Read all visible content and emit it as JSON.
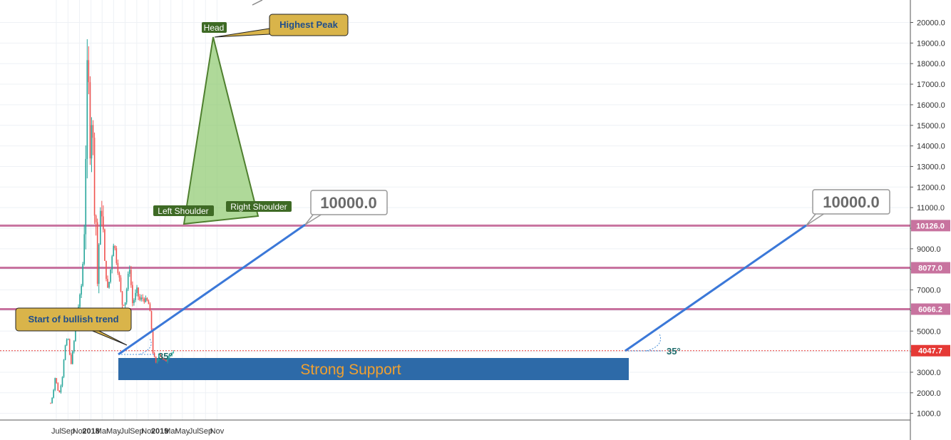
{
  "chart_data": {
    "type": "candlestick",
    "symbol_color_up": "#26a69a",
    "symbol_color_down": "#ef5350",
    "price_axis": {
      "ticks": [
        "1000.0",
        "2000.0",
        "3000.0",
        "4000.0",
        "5000.0",
        "6000.0",
        "7000.0",
        "8000.0",
        "9000.0",
        "10000.0",
        "11000.0",
        "12000.0",
        "13000.0",
        "14000.0",
        "15000.0",
        "16000.0",
        "17000.0",
        "18000.0",
        "19000.0",
        "20000.0"
      ],
      "ylim": [
        0,
        20700
      ]
    },
    "time_axis": {
      "ticks": [
        "Jul",
        "Sep",
        "Nov",
        "2018",
        "Mar",
        "May",
        "Jul",
        "Sep",
        "Nov",
        "2019",
        "Mar",
        "May",
        "Jul",
        "Sep",
        "Nov"
      ]
    },
    "price_series": [
      [
        "2017-06-01",
        1500
      ],
      [
        "2017-06-15",
        2000
      ],
      [
        "2017-06-22",
        2800
      ],
      [
        "2017-07-01",
        2500
      ],
      [
        "2017-07-15",
        1900
      ],
      [
        "2017-08-01",
        2700
      ],
      [
        "2017-08-15",
        4200
      ],
      [
        "2017-09-01",
        4700
      ],
      [
        "2017-09-15",
        3300
      ],
      [
        "2017-10-01",
        4300
      ],
      [
        "2017-10-15",
        5600
      ],
      [
        "2017-11-01",
        6500
      ],
      [
        "2017-11-15",
        7500
      ],
      [
        "2017-11-29",
        10500
      ],
      [
        "2017-12-08",
        16000
      ],
      [
        "2017-12-17",
        19300
      ],
      [
        "2017-12-23",
        13500
      ],
      [
        "2018-01-01",
        14500
      ],
      [
        "2018-01-08",
        16500
      ],
      [
        "2018-01-17",
        11000
      ],
      [
        "2018-01-25",
        11300
      ],
      [
        "2018-02-05",
        7000
      ],
      [
        "2018-02-15",
        10200
      ],
      [
        "2018-03-01",
        11000
      ],
      [
        "2018-03-15",
        8300
      ],
      [
        "2018-04-01",
        6900
      ],
      [
        "2018-04-15",
        8000
      ],
      [
        "2018-05-01",
        9500
      ],
      [
        "2018-05-15",
        8500
      ],
      [
        "2018-06-01",
        7500
      ],
      [
        "2018-06-15",
        6300
      ],
      [
        "2018-07-01",
        6400
      ],
      [
        "2018-07-24",
        8200
      ],
      [
        "2018-08-10",
        6300
      ],
      [
        "2018-09-01",
        7000
      ],
      [
        "2018-09-15",
        6500
      ],
      [
        "2018-10-01",
        6600
      ],
      [
        "2018-10-15",
        6500
      ],
      [
        "2018-11-01",
        6400
      ],
      [
        "2018-11-15",
        5600
      ],
      [
        "2018-11-25",
        4000
      ],
      [
        "2018-12-15",
        3300
      ],
      [
        "2018-12-25",
        4000
      ],
      [
        "2019-01-10",
        3700
      ],
      [
        "2019-02-01",
        3500
      ],
      [
        "2019-02-20",
        3900
      ],
      [
        "2019-03-01",
        3850
      ],
      [
        "2019-03-10",
        4000
      ],
      [
        "2019-03-15",
        3900
      ]
    ],
    "horizontal_levels": [
      {
        "value": 10126.0,
        "label": "10126.0",
        "color": "#c8739f"
      },
      {
        "value": 8077.0,
        "label": "8077.0",
        "color": "#c8739f"
      },
      {
        "value": 6066.2,
        "label": "6066.2",
        "color": "#c8739f"
      },
      {
        "value": 4047.7,
        "label": "4047.7",
        "color": "#e53935",
        "style": "dotted"
      }
    ],
    "trend_lines": [
      {
        "from": [
          "2017-09-03",
          3600
        ],
        "to": [
          "2018-03-24",
          10000
        ],
        "color": "#3b78d8"
      },
      {
        "from": [
          "2019-03-01",
          3850
        ],
        "to": [
          "2019-09-26",
          10000
        ],
        "color": "#3b78d8"
      }
    ],
    "pattern_triangle": {
      "left": [
        "2017-11-22",
        10000
      ],
      "head": [
        "2017-12-17",
        19100
      ],
      "right": [
        "2018-02-08",
        10300
      ]
    },
    "support_zone": {
      "from": "2017-09-03",
      "to": "2019-03-01",
      "low": 2450,
      "high": 3500,
      "color": "#2d6aa8"
    }
  },
  "annotations": {
    "head": "Head",
    "left_shoulder": "Left Shoulder",
    "right_shoulder": "Right Shoulder",
    "highest_peak": "Highest Peak",
    "bullish": "Start of bullish trend",
    "target_1": "10000.0",
    "target_2": "10000.0",
    "angle_1": "35°",
    "angle_2": "35°",
    "support": "Strong Support"
  }
}
